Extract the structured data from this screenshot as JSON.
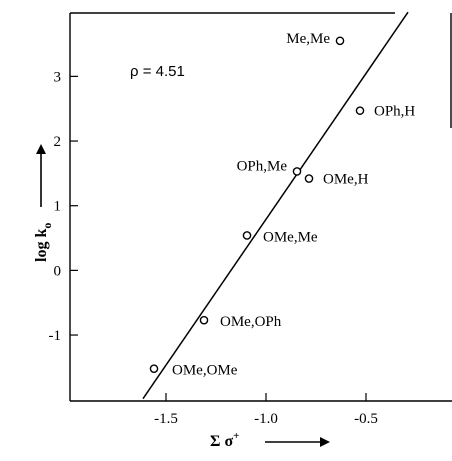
{
  "chart_data": {
    "type": "scatter",
    "xlim": [
      -1.98,
      -0.07
    ],
    "ylim": [
      -2.02,
      3.98
    ],
    "xticks": [
      -1.5,
      -1.0,
      -0.5
    ],
    "xtick_labels": [
      "-1.5",
      "-1.0",
      "-0.5"
    ],
    "yticks": [
      -1,
      0,
      1,
      2,
      3
    ],
    "ytick_labels": [
      "-1",
      "0",
      "1",
      "2",
      "3"
    ],
    "ylabel": "log k",
    "ylabel_sub": "o",
    "xlabel": "Σ σ",
    "xlabel_sup": "+",
    "annotation": "ρ  =  4.51",
    "grid": false,
    "fit_line": {
      "slope": 4.51,
      "intercept": 5.3,
      "x_range": [
        -1.615,
        -0.29
      ]
    },
    "points": [
      {
        "label": "Me,Me",
        "x": -0.63,
        "y": 3.55
      },
      {
        "label": "OPh,H",
        "x": -0.53,
        "y": 2.47
      },
      {
        "label": "OPh,Me",
        "x": -0.845,
        "y": 1.53
      },
      {
        "label": "OMe,H",
        "x": -0.785,
        "y": 1.42
      },
      {
        "label": "OMe,Me",
        "x": -1.095,
        "y": 0.54
      },
      {
        "label": "OMe,OPh",
        "x": -1.31,
        "y": -0.77
      },
      {
        "label": "OMe,OMe",
        "x": -1.56,
        "y": -1.52
      }
    ]
  }
}
